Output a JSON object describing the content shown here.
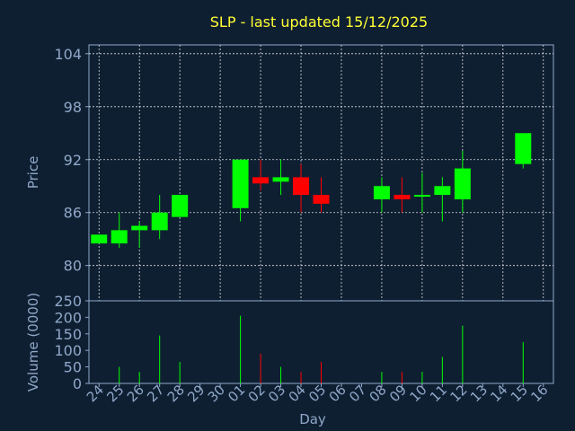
{
  "chart_data": {
    "type": "candlestick",
    "title": "SLP - last updated 15/12/2025",
    "xlabel": "Day",
    "ylabel_price": "Price",
    "ylabel_volume": "Volume (0000)",
    "days": [
      "24",
      "25",
      "26",
      "27",
      "28",
      "29",
      "30",
      "01",
      "02",
      "03",
      "04",
      "05",
      "06",
      "07",
      "08",
      "09",
      "10",
      "11",
      "12",
      "13",
      "14",
      "15",
      "16"
    ],
    "price_ylim": [
      76,
      105
    ],
    "price_ticks": [
      "80",
      "86",
      "92",
      "98",
      "104"
    ],
    "volume_ylim": [
      0,
      250
    ],
    "volume_ticks": [
      "0",
      "50",
      "100",
      "150",
      "200",
      "250"
    ],
    "grid": true,
    "candles": [
      {
        "day": "24",
        "open": 82.5,
        "close": 83.5,
        "low": 82.5,
        "high": 83.5,
        "volume": 0
      },
      {
        "day": "25",
        "open": 82.5,
        "close": 84.0,
        "low": 82.0,
        "high": 86.0,
        "volume": 50
      },
      {
        "day": "26",
        "open": 84.0,
        "close": 84.5,
        "low": 82.0,
        "high": 85.0,
        "volume": 35
      },
      {
        "day": "27",
        "open": 84.0,
        "close": 86.0,
        "low": 83.0,
        "high": 88.0,
        "volume": 145
      },
      {
        "day": "28",
        "open": 85.5,
        "close": 88.0,
        "low": 85.5,
        "high": 88.0,
        "volume": 65
      },
      {
        "day": "01",
        "open": 86.5,
        "close": 92.0,
        "low": 85.0,
        "high": 92.0,
        "volume": 205
      },
      {
        "day": "02",
        "open": 90.0,
        "close": 89.3,
        "low": 88.5,
        "high": 92.0,
        "volume": 90
      },
      {
        "day": "03",
        "open": 89.5,
        "close": 90.0,
        "low": 88.0,
        "high": 92.0,
        "volume": 50
      },
      {
        "day": "04",
        "open": 90.0,
        "close": 88.0,
        "low": 86.0,
        "high": 91.5,
        "volume": 35
      },
      {
        "day": "05",
        "open": 88.0,
        "close": 87.0,
        "low": 86.0,
        "high": 90.0,
        "volume": 65
      },
      {
        "day": "08",
        "open": 87.5,
        "close": 89.0,
        "low": 86.0,
        "high": 90.0,
        "volume": 35
      },
      {
        "day": "09",
        "open": 88.0,
        "close": 87.5,
        "low": 86.0,
        "high": 90.0,
        "volume": 35
      },
      {
        "day": "10",
        "open": 87.8,
        "close": 88.0,
        "low": 86.0,
        "high": 90.5,
        "volume": 35
      },
      {
        "day": "11",
        "open": 88.0,
        "close": 89.0,
        "low": 85.0,
        "high": 90.0,
        "volume": 80
      },
      {
        "day": "12",
        "open": 87.5,
        "close": 91.0,
        "low": 86.0,
        "high": 93.0,
        "volume": 175
      },
      {
        "day": "15",
        "open": 91.5,
        "close": 95.0,
        "low": 91.0,
        "high": 95.0,
        "volume": 125
      }
    ],
    "colors": {
      "up": "#00ff00",
      "down": "#ff0000",
      "grid": "#ffffff",
      "axis": "#8fa8c8",
      "title": "#ffff33",
      "background": "#0f1f32"
    }
  }
}
